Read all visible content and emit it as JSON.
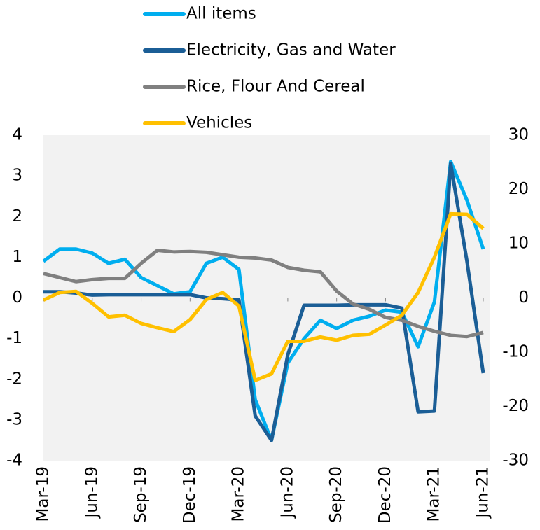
{
  "chart_data": {
    "type": "line",
    "categories": [
      "Mar-19",
      null,
      null,
      "Jun-19",
      null,
      null,
      "Sep-19",
      null,
      null,
      "Dec-19",
      null,
      null,
      "Mar-20",
      null,
      null,
      "Jun-20",
      null,
      null,
      "Sep-20",
      null,
      null,
      "Dec-20",
      null,
      null,
      "Mar-21",
      null,
      null,
      "Jun-21"
    ],
    "series": [
      {
        "name": "All items",
        "color": "#00aeef",
        "axis": "y",
        "values": [
          0.9,
          1.2,
          1.2,
          1.1,
          0.85,
          0.95,
          0.5,
          0.3,
          0.1,
          0.15,
          0.85,
          1.0,
          0.7,
          -2.5,
          -3.5,
          -1.6,
          -1.0,
          -0.55,
          -0.75,
          -0.55,
          -0.45,
          -0.3,
          -0.35,
          -1.2,
          -0.1,
          3.35,
          2.4,
          1.2
        ]
      },
      {
        "name": "Electricity, Gas and Water",
        "color": "#1b5e96",
        "axis": "y",
        "values": [
          0.15,
          0.15,
          0.12,
          0.07,
          0.08,
          0.08,
          0.08,
          0.08,
          0.08,
          0.08,
          0.0,
          -0.02,
          -0.05,
          -2.9,
          -3.5,
          -1.4,
          -0.18,
          -0.18,
          -0.18,
          -0.17,
          -0.17,
          -0.17,
          -0.25,
          -2.8,
          -2.78,
          3.3,
          0.9,
          -1.85
        ]
      },
      {
        "name": "Rice, Flour And Cereal",
        "color": "#808080",
        "axis": "y",
        "values": [
          0.6,
          0.5,
          0.4,
          0.45,
          0.48,
          0.48,
          0.85,
          1.17,
          1.13,
          1.14,
          1.12,
          1.06,
          1.0,
          0.98,
          0.93,
          0.75,
          0.68,
          0.64,
          0.17,
          -0.15,
          -0.28,
          -0.48,
          -0.55,
          -0.7,
          -0.82,
          -0.92,
          -0.95,
          -0.85
        ]
      },
      {
        "name": "Vehicles",
        "color": "#ffc000",
        "axis": "y2",
        "values": [
          -0.4,
          1,
          1.2,
          -1,
          -3.5,
          -3.2,
          -4.7,
          -5.5,
          -6.2,
          -4,
          -0.3,
          1,
          -1.5,
          -15.2,
          -14,
          -8,
          -8,
          -7.2,
          -7.8,
          -6.9,
          -6.7,
          -5,
          -3.2,
          1,
          7.5,
          15.5,
          15.4,
          12.8
        ]
      }
    ],
    "ylim": [
      -4,
      4
    ],
    "yticks": [
      -4,
      -3,
      -2,
      -1,
      0,
      1,
      2,
      3,
      4
    ],
    "y2lim": [
      -30,
      30
    ],
    "y2ticks": [
      -30,
      -20,
      -10,
      0,
      10,
      20,
      30
    ]
  }
}
